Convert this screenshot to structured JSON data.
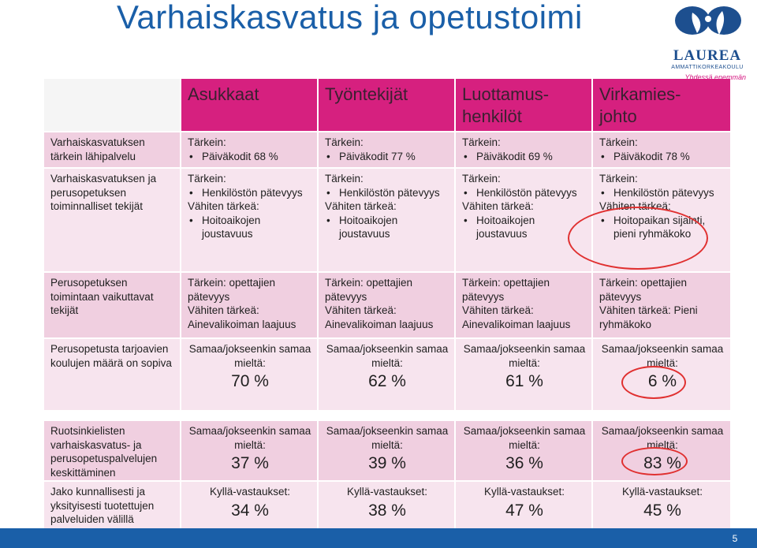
{
  "title": "Varhaiskasvatus ja opetustoimi",
  "logo": {
    "name": "LAUREA",
    "sub": "AMMATTIKORKEAKOULU",
    "slogan": "Yhdessä enemmän",
    "colors": {
      "blue": "#1d4f8f",
      "pink": "#d4147f"
    }
  },
  "headers": [
    {
      "line1": "Asukkaat",
      "line2": ""
    },
    {
      "line1": "Työntekijät",
      "line2": ""
    },
    {
      "line1": "Luottamus-",
      "line2": "henkilöt"
    },
    {
      "line1": "Virkamies-",
      "line2": "johto"
    }
  ],
  "rows": [
    {
      "label": "Varhaiskasvatuksen tärkein lähipalvelu",
      "cells": [
        {
          "a": "Tärkein:",
          "b": "Päiväkodit 68 %"
        },
        {
          "a": "Tärkein:",
          "b": "Päiväkodit 77 %"
        },
        {
          "a": "Tärkein:",
          "b": "Päiväkodit 69 %"
        },
        {
          "a": "Tärkein:",
          "b": "Päiväkodit 78 %"
        }
      ]
    },
    {
      "label": "Varhaiskasvatuksen ja perusopetuksen toiminnalliset tekijät",
      "cells": [
        {
          "a": "Tärkein:",
          "b": "Henkilöstön pätevyys",
          "c": "Vähiten tärkeä:",
          "d": "Hoitoaikojen joustavuus"
        },
        {
          "a": "Tärkein:",
          "b": "Henkilöstön pätevyys",
          "c": "Vähiten tärkeä:",
          "d": "Hoitoaikojen joustavuus"
        },
        {
          "a": "Tärkein:",
          "b": "Henkilöstön pätevyys",
          "c": "Vähiten tärkeä:",
          "d": "Hoitoaikojen joustavuus"
        },
        {
          "a": "Tärkein:",
          "b": "Henkilöstön pätevyys",
          "c": "Vähiten tärkeä:",
          "d": "Hoitopaikan sijainti, pieni ryhmäkoko"
        }
      ]
    },
    {
      "label": "Perusopetuksen toimintaan vaikuttavat tekijät",
      "cells": [
        {
          "a": "Tärkein: opettajien pätevyys",
          "b": "Vähiten tärkeä: Ainevalikoiman laajuus"
        },
        {
          "a": "Tärkein: opettajien pätevyys",
          "b": "Vähiten tärkeä: Ainevalikoiman laajuus"
        },
        {
          "a": "Tärkein: opettajien pätevyys",
          "b": "Vähiten tärkeä: Ainevalikoiman laajuus"
        },
        {
          "a": "Tärkein: opettajien pätevyys",
          "b": "Vähiten tärkeä: Pieni ryhmäkoko"
        }
      ]
    },
    {
      "label": "Perusopetusta tarjoavien koulujen määrä on sopiva",
      "cells": [
        {
          "a": "Samaa/jokseenkin samaa mieltä:",
          "b": "70 %"
        },
        {
          "a": "Samaa/jokseenkin samaa mieltä:",
          "b": "62 %"
        },
        {
          "a": "Samaa/jokseenkin samaa mieltä:",
          "b": "61 %"
        },
        {
          "a": "Samaa/jokseenkin samaa mieltä:",
          "b": "6 %"
        }
      ]
    },
    {
      "label": "Ruotsinkielisten varhaiskasvatus- ja perusopetuspalvelujen keskittäminen",
      "cells": [
        {
          "a": "Samaa/jokseenkin samaa mieltä:",
          "b": "37 %"
        },
        {
          "a": "Samaa/jokseenkin samaa mieltä:",
          "b": "39 %"
        },
        {
          "a": "Samaa/jokseenkin samaa mieltä:",
          "b": "36 %"
        },
        {
          "a": "Samaa/jokseenkin samaa mieltä:",
          "b": "83 %"
        }
      ]
    },
    {
      "label": "Jako kunnallisesti ja yksityisesti tuotettujen palveluiden välillä",
      "cells": [
        {
          "a": "Kyllä-vastaukset:",
          "b": "34 %"
        },
        {
          "a": "Kyllä-vastaukset:",
          "b": "38 %"
        },
        {
          "a": "Kyllä-vastaukset:",
          "b": "47 %"
        },
        {
          "a": "Kyllä-vastaukset:",
          "b": "45 %"
        }
      ]
    }
  ],
  "page_number": "5",
  "colors": {
    "title": "#1a5fa8",
    "header_bg": "#d6207f",
    "row_dark": "#f0cfe0",
    "row_light": "#f7e4ee",
    "highlight_circle": "#e03030"
  }
}
